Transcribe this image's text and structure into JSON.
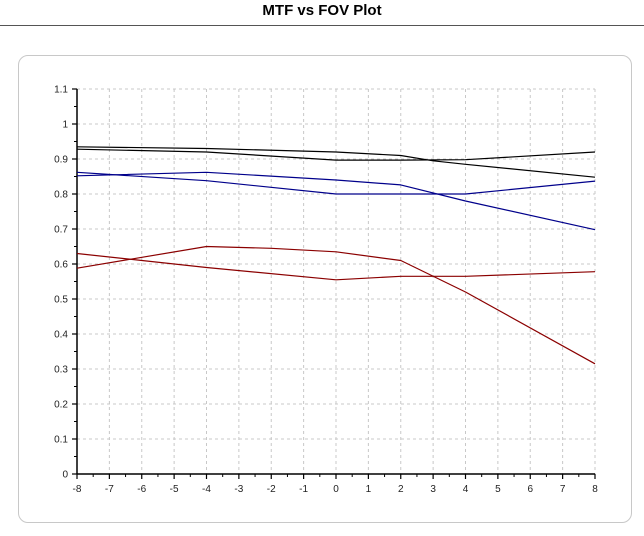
{
  "window": {
    "title": "MTF vs FOV Plot"
  },
  "chart_data": {
    "type": "line",
    "title": "",
    "xlabel": "",
    "ylabel": "",
    "xlim": [
      -8,
      8
    ],
    "ylim": [
      0,
      1.1
    ],
    "x_ticks": [
      -8,
      -7,
      -6,
      -5,
      -4,
      -3,
      -2,
      -1,
      0,
      1,
      2,
      3,
      4,
      5,
      6,
      7,
      8
    ],
    "y_ticks": [
      0,
      0.1,
      0.2,
      0.3,
      0.4,
      0.5,
      0.6,
      0.7,
      0.8,
      0.9,
      1,
      1.1
    ],
    "y_tick_labels": [
      "0",
      "0.1",
      "0.2",
      "0.3",
      "0.4",
      "0.5",
      "0.6",
      "0.7",
      "0.8",
      "0.9",
      "1",
      "1.1"
    ],
    "grid": true,
    "legend": "none",
    "series": [
      {
        "color": "#000000",
        "points": [
          [
            -8,
            0.935
          ],
          [
            -4,
            0.93
          ],
          [
            0,
            0.92
          ],
          [
            2,
            0.91
          ],
          [
            3,
            0.895
          ],
          [
            4,
            0.885
          ],
          [
            8,
            0.848
          ]
        ]
      },
      {
        "color": "#000000",
        "points": [
          [
            -8,
            0.928
          ],
          [
            -4,
            0.92
          ],
          [
            0,
            0.897
          ],
          [
            2,
            0.897
          ],
          [
            4,
            0.898
          ],
          [
            8,
            0.92
          ]
        ]
      },
      {
        "color": "#00008b",
        "points": [
          [
            -8,
            0.862
          ],
          [
            -4,
            0.838
          ],
          [
            0,
            0.8
          ],
          [
            2,
            0.8
          ],
          [
            4,
            0.8
          ],
          [
            8,
            0.837
          ]
        ]
      },
      {
        "color": "#00008b",
        "points": [
          [
            -8,
            0.852
          ],
          [
            -4,
            0.862
          ],
          [
            0,
            0.84
          ],
          [
            2,
            0.826
          ],
          [
            4,
            0.78
          ],
          [
            8,
            0.698
          ]
        ]
      },
      {
        "color": "#8b0000",
        "points": [
          [
            -8,
            0.63
          ],
          [
            -4,
            0.59
          ],
          [
            0,
            0.555
          ],
          [
            2,
            0.565
          ],
          [
            4,
            0.565
          ],
          [
            8,
            0.578
          ]
        ]
      },
      {
        "color": "#8b0000",
        "points": [
          [
            -8,
            0.588
          ],
          [
            -4,
            0.65
          ],
          [
            -2,
            0.645
          ],
          [
            0,
            0.635
          ],
          [
            2,
            0.61
          ],
          [
            4,
            0.52
          ],
          [
            8,
            0.315
          ]
        ]
      }
    ]
  }
}
